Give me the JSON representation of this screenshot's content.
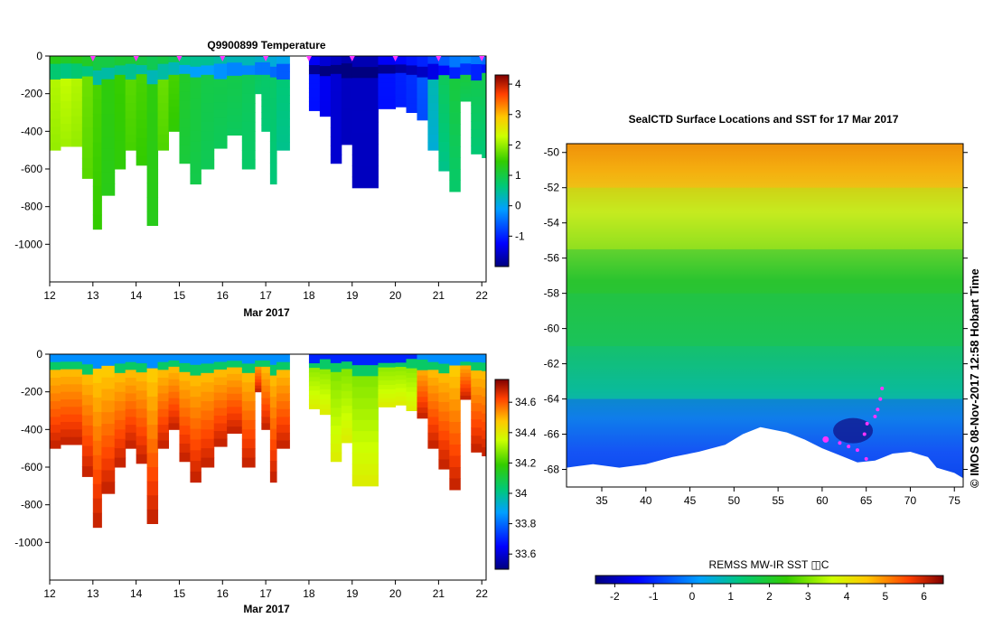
{
  "chart_data": [
    {
      "type": "heatmap",
      "title": "Q9900899  Temperature",
      "xlabel": "Mar 2017",
      "ylabel": "",
      "xlim": [
        12,
        22.1
      ],
      "ylim": [
        -1200,
        0
      ],
      "x_ticks": [
        "12",
        "13",
        "14",
        "15",
        "16",
        "17",
        "18",
        "19",
        "20",
        "21",
        "22"
      ],
      "y_ticks": [
        "0",
        "-200",
        "-400",
        "-600",
        "-800",
        "-1000"
      ],
      "colorbar": {
        "min": -2,
        "max": 4.3,
        "ticks": [
          "4",
          "3",
          "2",
          "1",
          "0",
          "-1"
        ]
      },
      "profile_markers_day": [
        13,
        14,
        15,
        16,
        17,
        18,
        19,
        20,
        21,
        22
      ],
      "profiles": [
        {
          "x": 12.0,
          "w": 0.25,
          "depth": 500,
          "surface": 1.3,
          "deep": 2.2
        },
        {
          "x": 12.25,
          "w": 0.25,
          "depth": 480,
          "surface": 1.2,
          "deep": 2.3
        },
        {
          "x": 12.5,
          "w": 0.25,
          "depth": 480,
          "surface": 1.3,
          "deep": 2.2
        },
        {
          "x": 12.75,
          "w": 0.25,
          "depth": 650,
          "surface": 1.2,
          "deep": 1.8
        },
        {
          "x": 13.0,
          "w": 0.2,
          "depth": 920,
          "surface": 1.0,
          "deep": 1.6
        },
        {
          "x": 13.2,
          "w": 0.3,
          "depth": 740,
          "surface": 1.0,
          "deep": 1.4
        },
        {
          "x": 13.5,
          "w": 0.25,
          "depth": 600,
          "surface": 1.1,
          "deep": 1.5
        },
        {
          "x": 13.75,
          "w": 0.25,
          "depth": 500,
          "surface": 1.1,
          "deep": 1.7
        },
        {
          "x": 14.0,
          "w": 0.25,
          "depth": 580,
          "surface": 1.0,
          "deep": 1.6
        },
        {
          "x": 14.25,
          "w": 0.25,
          "depth": 900,
          "surface": 0.9,
          "deep": 1.4
        },
        {
          "x": 14.5,
          "w": 0.25,
          "depth": 500,
          "surface": 1.0,
          "deep": 1.8
        },
        {
          "x": 14.75,
          "w": 0.25,
          "depth": 400,
          "surface": 0.9,
          "deep": 1.6
        },
        {
          "x": 15.0,
          "w": 0.25,
          "depth": 570,
          "surface": 0.6,
          "deep": 1.2
        },
        {
          "x": 15.25,
          "w": 0.25,
          "depth": 680,
          "surface": 0.5,
          "deep": 1.1
        },
        {
          "x": 15.5,
          "w": 0.3,
          "depth": 600,
          "surface": 0.5,
          "deep": 1.0
        },
        {
          "x": 15.8,
          "w": 0.3,
          "depth": 490,
          "surface": 0.4,
          "deep": 1.0
        },
        {
          "x": 16.1,
          "w": 0.35,
          "depth": 420,
          "surface": 0.3,
          "deep": 1.0
        },
        {
          "x": 16.45,
          "w": 0.3,
          "depth": 600,
          "surface": 0.3,
          "deep": 0.9
        },
        {
          "x": 16.75,
          "w": 0.15,
          "depth": 200,
          "surface": 0.2,
          "deep": 0.9
        },
        {
          "x": 16.9,
          "w": 0.2,
          "depth": 400,
          "surface": 0.2,
          "deep": 0.8
        },
        {
          "x": 17.1,
          "w": 0.15,
          "depth": 680,
          "surface": 0.1,
          "deep": 0.8
        },
        {
          "x": 17.25,
          "w": 0.3,
          "depth": 500,
          "surface": 0.0,
          "deep": 0.7
        },
        {
          "x": 18.0,
          "w": 0.25,
          "depth": 290,
          "surface": -1.3,
          "deep": -1.1
        },
        {
          "x": 18.25,
          "w": 0.25,
          "depth": 320,
          "surface": -1.5,
          "deep": -1.3
        },
        {
          "x": 18.5,
          "w": 0.25,
          "depth": 570,
          "surface": -1.6,
          "deep": -1.5
        },
        {
          "x": 18.75,
          "w": 0.25,
          "depth": 470,
          "surface": -1.7,
          "deep": -1.6
        },
        {
          "x": 19.0,
          "w": 0.6,
          "depth": 700,
          "surface": -1.7,
          "deep": -1.6
        },
        {
          "x": 19.6,
          "w": 0.4,
          "depth": 280,
          "surface": -1.3,
          "deep": -1.1
        },
        {
          "x": 20.0,
          "w": 0.25,
          "depth": 270,
          "surface": -1.2,
          "deep": -1.0
        },
        {
          "x": 20.25,
          "w": 0.25,
          "depth": 300,
          "surface": -1.1,
          "deep": -0.9
        },
        {
          "x": 20.5,
          "w": 0.25,
          "depth": 340,
          "surface": -1.0,
          "deep": -0.6
        },
        {
          "x": 20.75,
          "w": 0.25,
          "depth": 500,
          "surface": -0.8,
          "deep": 0.4
        },
        {
          "x": 21.0,
          "w": 0.25,
          "depth": 610,
          "surface": -0.6,
          "deep": 0.9
        },
        {
          "x": 21.25,
          "w": 0.25,
          "depth": 720,
          "surface": -0.4,
          "deep": 1.1
        },
        {
          "x": 21.5,
          "w": 0.25,
          "depth": 240,
          "surface": -0.3,
          "deep": 1.2
        },
        {
          "x": 21.75,
          "w": 0.25,
          "depth": 520,
          "surface": -0.4,
          "deep": 1.0
        },
        {
          "x": 22.0,
          "w": 0.1,
          "depth": 540,
          "surface": -0.5,
          "deep": 1.0
        }
      ]
    },
    {
      "type": "heatmap",
      "title": "",
      "xlabel": "Mar 2017",
      "ylabel": "",
      "xlim": [
        12,
        22.1
      ],
      "ylim": [
        -1200,
        0
      ],
      "x_ticks": [
        "12",
        "13",
        "14",
        "15",
        "16",
        "17",
        "18",
        "19",
        "20",
        "21",
        "22"
      ],
      "y_ticks": [
        "0",
        "-200",
        "-400",
        "-600",
        "-800",
        "-1000"
      ],
      "colorbar": {
        "min": 33.5,
        "max": 34.75,
        "ticks": [
          "34.6",
          "34.4",
          "34.2",
          "34",
          "33.8",
          "33.6"
        ]
      }
    },
    {
      "type": "heatmap",
      "title": "SealCTD Surface Locations and SST for 17 Mar 2017",
      "xlabel": "",
      "ylabel": "",
      "xlim": [
        31,
        76
      ],
      "ylim": [
        -69,
        -49.5
      ],
      "x_ticks": [
        "35",
        "40",
        "45",
        "50",
        "55",
        "60",
        "65",
        "70",
        "75"
      ],
      "y_ticks": [
        "-50",
        "-52",
        "-54",
        "-56",
        "-58",
        "-60",
        "-62",
        "-64",
        "-66",
        "-68"
      ],
      "colorbar": {
        "label": "REMSS MW-IR SST ◫C",
        "min": -2.5,
        "max": 6.5,
        "ticks": [
          "-2",
          "-1",
          "0",
          "1",
          "2",
          "3",
          "4",
          "5",
          "6"
        ]
      },
      "sst_zones": [
        {
          "lat_top": -49.5,
          "lat_bottom": -52,
          "sst": 4.6
        },
        {
          "lat_top": -52,
          "lat_bottom": -55.5,
          "sst": 3.3
        },
        {
          "lat_top": -55.5,
          "lat_bottom": -58,
          "sst": 2.0
        },
        {
          "lat_top": -58,
          "lat_bottom": -61,
          "sst": 1.6
        },
        {
          "lat_top": -61,
          "lat_bottom": -64,
          "sst": 1.1
        },
        {
          "lat_top": -64,
          "lat_bottom": -69,
          "sst": -0.8
        }
      ],
      "seal_locations": [
        {
          "lon": 60.4,
          "lat": -66.3,
          "big": true
        },
        {
          "lon": 62.0,
          "lat": -66.5
        },
        {
          "lon": 63.0,
          "lat": -66.7
        },
        {
          "lon": 64.0,
          "lat": -66.9
        },
        {
          "lon": 65.0,
          "lat": -67.4
        },
        {
          "lon": 64.8,
          "lat": -66.0
        },
        {
          "lon": 65.1,
          "lat": -65.4
        },
        {
          "lon": 66.0,
          "lat": -65.0
        },
        {
          "lon": 66.3,
          "lat": -64.6
        },
        {
          "lon": 66.6,
          "lat": -64.0
        },
        {
          "lon": 66.8,
          "lat": -63.4
        }
      ]
    }
  ],
  "credit": "©  IMOS 08-Nov-2017 12:58 Hobart Time",
  "colors": {
    "seal_marker": "#ff33ff",
    "axis": "#000000"
  }
}
